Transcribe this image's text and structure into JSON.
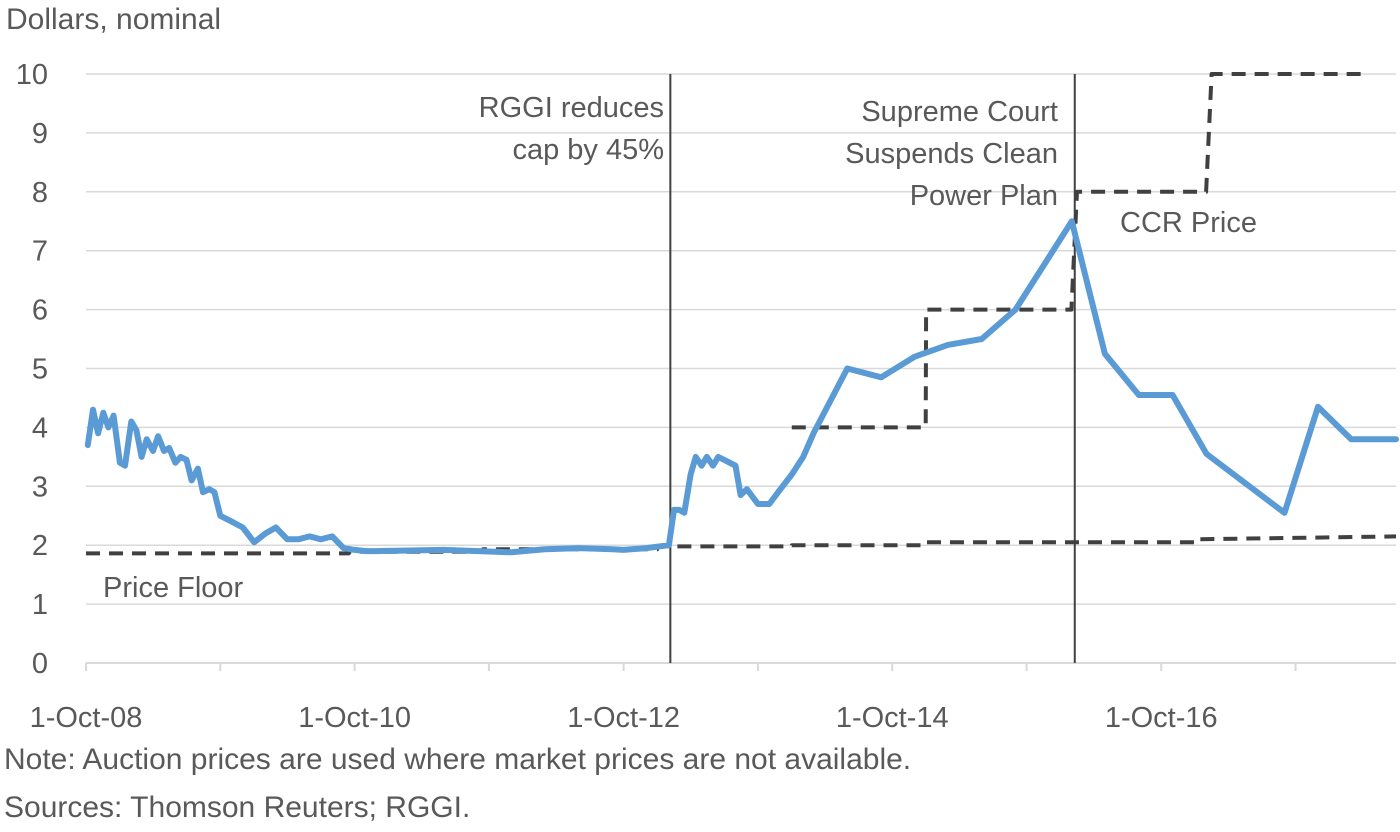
{
  "chart_data": {
    "type": "line",
    "ylabel": "Dollars, nominal",
    "ylim": [
      0,
      10
    ],
    "yticks": [
      0,
      1,
      2,
      3,
      4,
      5,
      6,
      7,
      8,
      9,
      10
    ],
    "x_range": [
      "2008-10-01",
      "2018-07-01"
    ],
    "xtick_labels": [
      "1-Oct-08",
      "1-Oct-10",
      "1-Oct-12",
      "1-Oct-14",
      "1-Oct-16"
    ],
    "grid": "horizontal",
    "colors": {
      "market_price": "#5B9BD5",
      "dashed": "#404040",
      "event_line": "#404040",
      "grid": "#D9D9D9",
      "text": "#595959"
    },
    "series": [
      {
        "points": [
          [
            "2008-10-06",
            3.7
          ],
          [
            "2008-10-20",
            4.3
          ],
          [
            "2008-11-03",
            3.9
          ],
          [
            "2008-11-17",
            4.25
          ],
          [
            "2008-12-01",
            4.0
          ],
          [
            "2008-12-15",
            4.2
          ],
          [
            "2009-01-01",
            3.4
          ],
          [
            "2009-01-15",
            3.35
          ],
          [
            "2009-02-01",
            4.1
          ],
          [
            "2009-02-15",
            3.95
          ],
          [
            "2009-03-01",
            3.5
          ],
          [
            "2009-03-15",
            3.8
          ],
          [
            "2009-04-01",
            3.6
          ],
          [
            "2009-04-15",
            3.85
          ],
          [
            "2009-05-01",
            3.6
          ],
          [
            "2009-05-15",
            3.65
          ],
          [
            "2009-06-01",
            3.4
          ],
          [
            "2009-06-15",
            3.5
          ],
          [
            "2009-07-01",
            3.45
          ],
          [
            "2009-07-15",
            3.1
          ],
          [
            "2009-08-01",
            3.3
          ],
          [
            "2009-08-15",
            2.9
          ],
          [
            "2009-09-01",
            2.95
          ],
          [
            "2009-09-15",
            2.9
          ],
          [
            "2009-10-01",
            2.5
          ],
          [
            "2009-11-01",
            2.4
          ],
          [
            "2009-12-01",
            2.3
          ],
          [
            "2010-01-01",
            2.05
          ],
          [
            "2010-02-01",
            2.2
          ],
          [
            "2010-03-01",
            2.3
          ],
          [
            "2010-04-01",
            2.1
          ],
          [
            "2010-05-01",
            2.1
          ],
          [
            "2010-06-01",
            2.15
          ],
          [
            "2010-07-01",
            2.1
          ],
          [
            "2010-08-01",
            2.15
          ],
          [
            "2010-09-01",
            1.95
          ],
          [
            "2010-10-01",
            1.92
          ],
          [
            "2010-11-01",
            1.9
          ],
          [
            "2010-12-01",
            1.9
          ],
          [
            "2011-06-01",
            1.92
          ],
          [
            "2011-12-01",
            1.88
          ],
          [
            "2012-03-01",
            1.93
          ],
          [
            "2012-06-01",
            1.95
          ],
          [
            "2012-09-01",
            1.93
          ],
          [
            "2012-10-01",
            1.92
          ],
          [
            "2012-12-01",
            1.95
          ],
          [
            "2013-02-01",
            2.0
          ],
          [
            "2013-02-15",
            2.6
          ],
          [
            "2013-03-01",
            2.6
          ],
          [
            "2013-03-15",
            2.55
          ],
          [
            "2013-04-01",
            3.2
          ],
          [
            "2013-04-15",
            3.5
          ],
          [
            "2013-05-01",
            3.35
          ],
          [
            "2013-05-15",
            3.5
          ],
          [
            "2013-06-01",
            3.35
          ],
          [
            "2013-06-15",
            3.5
          ],
          [
            "2013-07-01",
            3.45
          ],
          [
            "2013-08-01",
            3.35
          ],
          [
            "2013-08-15",
            2.85
          ],
          [
            "2013-09-01",
            2.95
          ],
          [
            "2013-10-01",
            2.7
          ],
          [
            "2013-11-01",
            2.7
          ],
          [
            "2013-12-01",
            2.95
          ],
          [
            "2014-01-01",
            3.2
          ],
          [
            "2014-02-01",
            3.5
          ],
          [
            "2014-03-01",
            3.9
          ],
          [
            "2014-06-01",
            5.0
          ],
          [
            "2014-09-01",
            4.85
          ],
          [
            "2014-12-01",
            5.2
          ],
          [
            "2015-03-01",
            5.4
          ],
          [
            "2015-06-01",
            5.5
          ],
          [
            "2015-09-01",
            6.0
          ],
          [
            "2016-02-01",
            7.5
          ],
          [
            "2016-05-01",
            5.25
          ],
          [
            "2016-08-01",
            4.55
          ],
          [
            "2016-11-01",
            4.55
          ],
          [
            "2017-02-01",
            3.55
          ],
          [
            "2017-09-01",
            2.55
          ],
          [
            "2017-12-01",
            4.35
          ],
          [
            "2018-03-01",
            3.8
          ],
          [
            "2018-07-01",
            3.8
          ]
        ]
      },
      {
        "name": "Price Floor",
        "style": "dashed",
        "points": [
          [
            "2008-10-01",
            1.86
          ],
          [
            "2010-09-15",
            1.86
          ],
          [
            "2010-09-15",
            1.89
          ],
          [
            "2011-09-15",
            1.89
          ],
          [
            "2011-09-15",
            1.93
          ],
          [
            "2012-12-31",
            1.93
          ],
          [
            "2013-01-01",
            1.98
          ],
          [
            "2013-12-31",
            1.98
          ],
          [
            "2014-01-01",
            2.0
          ],
          [
            "2014-12-31",
            2.0
          ],
          [
            "2015-01-01",
            2.05
          ],
          [
            "2016-12-31",
            2.05
          ],
          [
            "2017-01-01",
            2.1
          ],
          [
            "2018-07-01",
            2.15
          ]
        ]
      },
      {
        "name": "CCR Price",
        "style": "dashed",
        "points": [
          [
            "2014-01-01",
            4.0
          ],
          [
            "2014-12-31",
            4.0
          ],
          [
            "2015-01-01",
            6.0
          ],
          [
            "2016-01-31",
            6.0
          ],
          [
            "2016-02-15",
            8.0
          ],
          [
            "2017-01-31",
            8.0
          ],
          [
            "2017-02-15",
            10.0
          ],
          [
            "2018-04-01",
            10.0
          ]
        ]
      }
    ],
    "event_lines": [
      {
        "date": "2013-02-05",
        "label_lines": [
          "RGGI reduces",
          "cap by 45%"
        ]
      },
      {
        "date": "2016-02-09",
        "label_lines": [
          "Supreme Court",
          "Suspends Clean",
          "Power Plan"
        ]
      }
    ],
    "annotations": {
      "price_floor": "Price Floor",
      "ccr_price": "CCR Price"
    }
  },
  "notes": {
    "note": "Note: Auction prices are used where market prices are not available.",
    "sources": "Sources: Thomson Reuters; RGGI."
  }
}
